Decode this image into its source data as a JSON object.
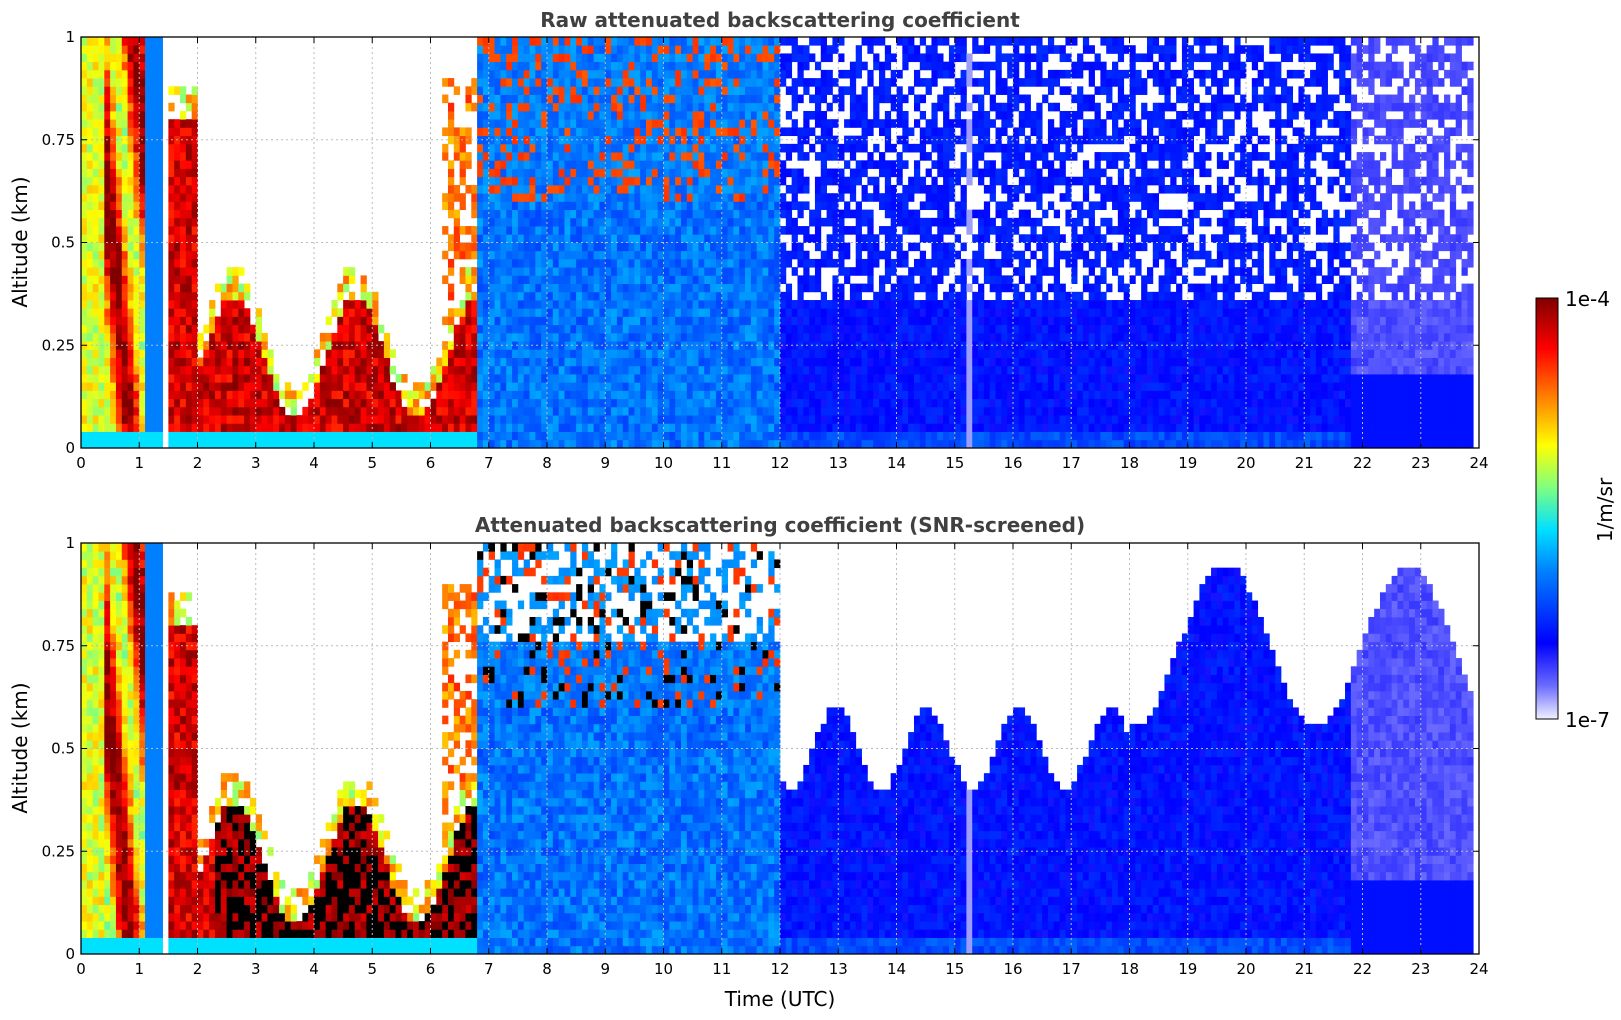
{
  "chart_data": [
    {
      "type": "heatmap",
      "title": "Raw attenuated backscattering coefficient",
      "xlabel": "",
      "ylabel": "Altitude (km)",
      "xlim": [
        0,
        24
      ],
      "ylim": [
        0,
        1
      ],
      "xticks": [
        "0",
        "1",
        "2",
        "3",
        "4",
        "5",
        "6",
        "7",
        "8",
        "9",
        "10",
        "11",
        "12",
        "13",
        "14",
        "15",
        "16",
        "17",
        "18",
        "19",
        "20",
        "21",
        "22",
        "23",
        "24"
      ],
      "yticks": [
        "0",
        "0.25",
        "0.5",
        "0.75",
        "1"
      ],
      "grid": true,
      "colorscale": "jet (log)",
      "screened": false
    },
    {
      "type": "heatmap",
      "title": "Attenuated backscattering coefficient (SNR-screened)",
      "xlabel": "Time (UTC)",
      "ylabel": "Altitude (km)",
      "xlim": [
        0,
        24
      ],
      "ylim": [
        0,
        1
      ],
      "xticks": [
        "0",
        "1",
        "2",
        "3",
        "4",
        "5",
        "6",
        "7",
        "8",
        "9",
        "10",
        "11",
        "12",
        "13",
        "14",
        "15",
        "16",
        "17",
        "18",
        "19",
        "20",
        "21",
        "22",
        "23",
        "24"
      ],
      "yticks": [
        "0",
        "0.25",
        "0.5",
        "0.75",
        "1"
      ],
      "grid": true,
      "colorscale": "jet (log)",
      "screened": true
    }
  ],
  "colorbar": {
    "max_label": "1e-4",
    "min_label": "1e-7",
    "unit": "1/m/sr",
    "placement": "right"
  }
}
